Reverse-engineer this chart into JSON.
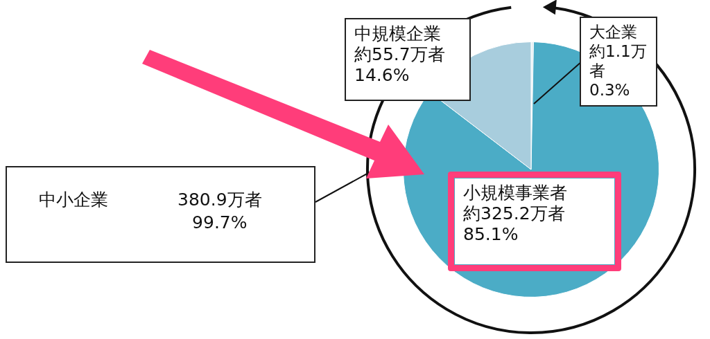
{
  "chart_data": {
    "type": "pie",
    "categories": [
      "大企業",
      "小規模事業者",
      "中規模企業"
    ],
    "values": [
      0.3,
      85.1,
      14.6
    ],
    "colors": [
      "#e4eef3",
      "#4bacc6",
      "#a8cddd"
    ],
    "value_labels": [
      "約1.1万者 0.3%",
      "約325.2万者 85.1%",
      "約55.7万者 14.6%"
    ],
    "legend": false,
    "annotations": [
      "中小企業 380.9万者 99.7%"
    ]
  }
}
